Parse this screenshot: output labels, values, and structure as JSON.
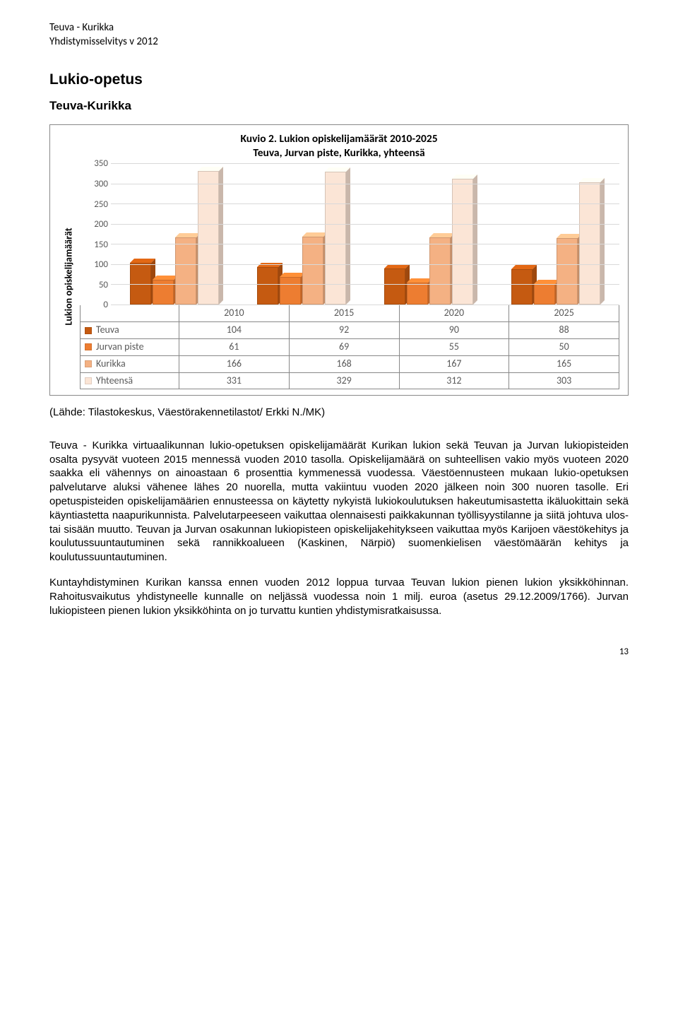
{
  "header": {
    "line1": "Teuva - Kurikka",
    "line2": "Yhdistymisselvitys v 2012"
  },
  "section": {
    "title": "Lukio-opetus",
    "subtitle": "Teuva-Kurikka"
  },
  "chart": {
    "type": "bar",
    "title_line1": "Kuvio 2.    Lukion opiskelijamäärät 2010-2025",
    "title_line2": "Teuva, Jurvan piste, Kurikka, yhteensä",
    "ylabel": "Lukion opiskelijamäärät",
    "ylim_max": 350,
    "ytick_step": 50,
    "yticks": [
      0,
      50,
      100,
      150,
      200,
      250,
      300,
      350
    ],
    "grid_color": "#d9d9d9",
    "categories": [
      "2010",
      "2015",
      "2020",
      "2025"
    ],
    "series": [
      {
        "name": "Teuva",
        "color": "#c55a11",
        "values": [
          104,
          92,
          90,
          88
        ]
      },
      {
        "name": "Jurvan piste",
        "color": "#ed7d31",
        "values": [
          61,
          69,
          55,
          50
        ]
      },
      {
        "name": "Kurikka",
        "color": "#f4b183",
        "values": [
          166,
          168,
          167,
          165
        ]
      },
      {
        "name": "Yhteensä",
        "color": "#fbe5d6",
        "values": [
          331,
          329,
          312,
          303
        ]
      }
    ],
    "background_color": "#ffffff",
    "title_fontsize": 15.5,
    "label_fontsize": 14
  },
  "source": "(Lähde: Tilastokeskus, Väestörakennetilastot/ Erkki N./MK)",
  "body": {
    "p1": "Teuva - Kurikka virtuaalikunnan lukio-opetuksen opiskelijamäärät Kurikan lukion sekä Teuvan ja Jurvan lukiopisteiden osalta pysyvät vuoteen 2015 mennessä vuoden 2010 tasolla. Opiskelijamäärä on suhteellisen vakio myös vuoteen 2020 saakka eli vähennys on ainoastaan 6 prosenttia kymmenessä vuodessa.  Väestöennusteen mukaan lukio-opetuksen palvelutarve aluksi vähenee lähes 20 nuorella, mutta vakiintuu vuoden 2020 jälkeen noin 300 nuoren tasolle. Eri opetuspisteiden opiskelijamäärien ennusteessa on käytetty nykyistä lukiokoulutuksen hakeutumisastetta ikäluokittain sekä käyntiastetta naapurikunnista. Palvelutarpeeseen vaikuttaa olennaisesti paikkakunnan työllisyystilanne ja siitä johtuva ulos- tai sisään muutto. Teuvan ja Jurvan osakunnan lukiopisteen opiskelijakehitykseen vaikuttaa myös Karijoen väestökehitys ja koulutussuuntautuminen sekä rannikkoalueen (Kaskinen, Närpiö) suomenkielisen väestömäärän kehitys ja koulutussuuntautuminen.",
    "p2": "Kuntayhdistyminen Kurikan kanssa ennen vuoden 2012 loppua turvaa Teuvan lukion pienen lukion yksikköhinnan.  Rahoitusvaikutus yhdistyneelle kunnalle on neljässä vuodessa noin 1 milj. euroa (asetus 29.12.2009/1766). Jurvan lukiopisteen pienen lukion yksikköhinta on jo turvattu kuntien yhdistymisratkaisussa."
  },
  "page_number": "13"
}
